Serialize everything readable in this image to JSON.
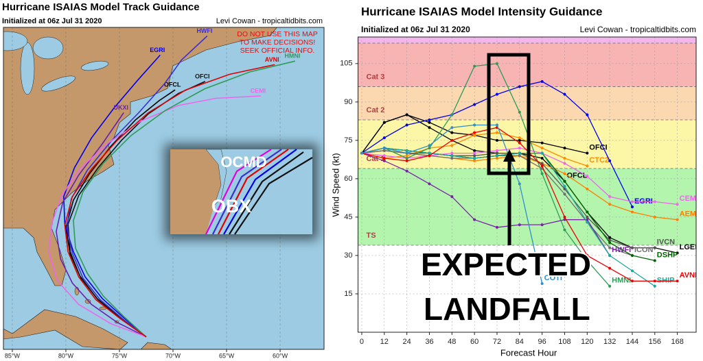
{
  "chart_data": [
    {
      "type": "map",
      "title": "Hurricane ISAIAS Model Track Guidance",
      "subtitle": "Initialized at 06z Jul 31 2020",
      "credit": "Levi Cowan - tropicaltidbits.com",
      "warning": [
        "DO NOT USE THIS MAP",
        "TO MAKE DECISIONS!",
        "SEEK OFFICIAL INFO."
      ],
      "xlim": [
        -85.83,
        -55.9
      ],
      "ylim": [
        19.86,
        46.71
      ],
      "xticks": [
        {
          "value": -85,
          "label": "85°W"
        },
        {
          "value": -80,
          "label": "80°W"
        },
        {
          "value": -75,
          "label": "75°W"
        },
        {
          "value": -70,
          "label": "70°W"
        },
        {
          "value": -65,
          "label": "65°W"
        },
        {
          "value": -60,
          "label": "60°W"
        }
      ],
      "grid": true,
      "series": [
        {
          "name": "OFCL",
          "color": "#000000",
          "x": [
            -72.5,
            -74.8,
            -77,
            -78.6,
            -79.6,
            -80,
            -79.3,
            -77.8,
            -75.8,
            -73.5,
            -71.3,
            -69.8
          ],
          "values": [
            20.9,
            22.4,
            24,
            25.8,
            27.8,
            30,
            32.3,
            34.5,
            36.8,
            39,
            40.6,
            41.5
          ]
        },
        {
          "name": "OFCI",
          "color": "#111111",
          "x": [
            -72.5,
            -74.9,
            -77.1,
            -78.7,
            -79.6,
            -79.8,
            -78.8,
            -77,
            -74.8,
            -72.3,
            -69.5,
            -67
          ],
          "values": [
            20.9,
            22.5,
            24.1,
            26,
            28,
            30.3,
            32.7,
            35,
            37.3,
            39.5,
            41.2,
            42.2
          ]
        },
        {
          "name": "EGRI",
          "color": "#0000ee",
          "x": [
            -72.5,
            -74.6,
            -76.6,
            -78.2,
            -79.3,
            -80.1,
            -80.2,
            -79.2,
            -77.6,
            -75.5,
            -73.3,
            -71.2
          ],
          "values": [
            20.9,
            22.5,
            24.1,
            25.9,
            28,
            30.3,
            32.6,
            35,
            37.5,
            40,
            42.3,
            44.4
          ]
        },
        {
          "name": "HWFI",
          "color": "#3a2fd0",
          "x": [
            -72.5,
            -74.7,
            -76.8,
            -78.4,
            -79.4,
            -79.9,
            -79.5,
            -78,
            -75.8,
            -73.2,
            -70.8,
            -69.2,
            -66.8
          ],
          "values": [
            20.9,
            22.4,
            24,
            25.8,
            27.9,
            30.1,
            32.4,
            34.8,
            37.2,
            39.6,
            42,
            44,
            46
          ]
        },
        {
          "name": "UKXI",
          "color": "#6a1fb0",
          "x": [
            -72.5,
            -75.2,
            -77.6,
            -79.4,
            -80.5,
            -80.9,
            -80.3,
            -78.8,
            -76.6,
            -74.6
          ],
          "values": [
            20.9,
            22.1,
            23.6,
            25.4,
            27.4,
            29.7,
            32.1,
            34.4,
            37,
            39.6
          ]
        },
        {
          "name": "CEMI",
          "color": "#ee66ee",
          "x": [
            -72.5,
            -75.8,
            -78.8,
            -80.8,
            -81.6,
            -81.3,
            -80.4,
            -78.6,
            -76,
            -73,
            -69.5,
            -66,
            -61.8
          ],
          "values": [
            20.9,
            22,
            23.6,
            25.6,
            28,
            30.4,
            32.7,
            35,
            37.1,
            38.9,
            40.2,
            40.8,
            41
          ]
        },
        {
          "name": "HMNI",
          "color": "#2e9b57",
          "x": [
            -72.5,
            -74.6,
            -76.5,
            -78,
            -79.1,
            -79.3,
            -78.4,
            -76.5,
            -73.9,
            -70.7,
            -67,
            -62.8,
            -58.6
          ],
          "values": [
            20.9,
            22.6,
            24.3,
            26.2,
            28.3,
            30.6,
            33,
            35.4,
            37.7,
            39.8,
            41.6,
            43,
            43.9
          ]
        },
        {
          "name": "AVNI",
          "color": "#e00000",
          "x": [
            -72.5,
            -74.9,
            -77.2,
            -78.8,
            -79.8,
            -80.1,
            -79.4,
            -77.6,
            -75.2,
            -72.3,
            -68.8,
            -64.7,
            -60.5
          ],
          "values": [
            20.9,
            22.4,
            24,
            25.9,
            28,
            30.2,
            32.6,
            34.9,
            37.3,
            39.6,
            41.5,
            42.8,
            43.6
          ]
        }
      ],
      "inset": {
        "labels": [
          "OCMD",
          "OBX"
        ]
      }
    },
    {
      "type": "line",
      "title": "Hurricane ISAIAS Model Intensity Guidance",
      "subtitle": "Initialized at 06z Jul 31 2020",
      "credit": "Levi Cowan - tropicaltidbits.com",
      "xlabel": "Forecast Hour",
      "ylabel": "Wind Speed (kt)",
      "x": [
        0,
        12,
        24,
        36,
        48,
        60,
        72,
        84,
        96,
        108,
        120,
        132,
        144,
        156,
        168
      ],
      "xlim": [
        -2,
        178
      ],
      "xticks": [
        0,
        12,
        24,
        36,
        48,
        60,
        72,
        84,
        96,
        108,
        120,
        132,
        144,
        156,
        168
      ],
      "ylim": [
        0,
        115.4
      ],
      "yticks": [
        15,
        30,
        45,
        60,
        75,
        90,
        105
      ],
      "grid": true,
      "bands": [
        {
          "label": "TS",
          "from": 34,
          "to": 64,
          "color": "#b4f5ae"
        },
        {
          "label": "Cat 1",
          "from": 64,
          "to": 83,
          "color": "#fbf7a6"
        },
        {
          "label": "Cat 2",
          "from": 83,
          "to": 96,
          "color": "#fbd8b0"
        },
        {
          "label": "Cat 3",
          "from": 96,
          "to": 113,
          "color": "#f8b3b3"
        },
        {
          "from": 113,
          "to": 115.4,
          "color": "#f3b6ea"
        }
      ],
      "series": [
        {
          "name": "OFCI",
          "color": "#000000",
          "values": [
            70,
            82,
            85,
            82,
            78,
            77,
            75,
            75,
            74,
            72,
            70,
            null,
            null,
            null,
            null
          ]
        },
        {
          "name": "CTC2",
          "color": "#ff8c00",
          "values": [
            70,
            68,
            69,
            72,
            73,
            77,
            78,
            76,
            72,
            68,
            65,
            null,
            null,
            null,
            null
          ]
        },
        {
          "name": "OFCL",
          "color": "#000000",
          "values": [
            70,
            82,
            85,
            80,
            75,
            71,
            70,
            70,
            68,
            59,
            null,
            null,
            null,
            null,
            null
          ]
        },
        {
          "name": "EGRI",
          "color": "#0000ee",
          "values": [
            70,
            76,
            81,
            83,
            85,
            89,
            93,
            96,
            98,
            93,
            85,
            67,
            49,
            null,
            null
          ]
        },
        {
          "name": "CEMI",
          "color": "#ee66ee",
          "values": [
            70,
            69,
            68,
            69,
            70,
            70,
            71,
            72,
            70,
            66,
            61,
            53,
            51,
            51,
            50
          ]
        },
        {
          "name": "AEMI",
          "color": "#ff7f00",
          "values": [
            70,
            71,
            70,
            69,
            68,
            67,
            68,
            69,
            66,
            62,
            56,
            50,
            47,
            45,
            44
          ]
        },
        {
          "name": "LGEM",
          "color": "#000000",
          "values": [
            70,
            72,
            71,
            70,
            69,
            68,
            69,
            70,
            70,
            59,
            47,
            37,
            33,
            33,
            31
          ]
        },
        {
          "name": "IVCN",
          "color": "#555555",
          "values": [
            70,
            71,
            70,
            70,
            69,
            69,
            70,
            70,
            66,
            56,
            45,
            36,
            33,
            33,
            null
          ]
        },
        {
          "name": "ICON",
          "color": "#707070",
          "values": [
            70,
            71,
            70,
            69,
            68,
            68,
            69,
            69,
            64,
            54,
            43,
            33,
            30,
            null,
            null
          ]
        },
        {
          "name": "DSHP",
          "color": "#006400",
          "values": [
            70,
            72,
            71,
            70,
            69,
            68,
            69,
            70,
            70,
            59,
            47,
            35,
            30,
            28,
            null
          ]
        },
        {
          "name": "HWFI",
          "color": "#7b1fa8",
          "values": [
            70,
            67,
            63,
            58,
            53,
            44,
            41,
            42,
            42,
            44,
            44,
            30,
            null,
            null,
            null
          ]
        },
        {
          "name": "SHIP",
          "color": "#20a8a0",
          "values": [
            70,
            72,
            71,
            70,
            69,
            68,
            69,
            70,
            70,
            57,
            43,
            30,
            24,
            18,
            null
          ]
        },
        {
          "name": "HMNI",
          "color": "#2e9b57",
          "values": [
            70,
            72,
            68,
            72,
            85,
            104,
            105,
            86,
            62,
            40,
            28,
            18,
            null,
            null,
            null
          ]
        },
        {
          "name": "AVNI",
          "color": "#ee0000",
          "values": [
            70,
            68,
            67,
            69,
            75,
            78,
            80,
            74,
            65,
            45,
            30,
            25,
            20,
            20,
            20
          ]
        },
        {
          "name": "COTI",
          "color": "#2f8fc8",
          "values": [
            70,
            72,
            70,
            73,
            80,
            81,
            81,
            58,
            19,
            null,
            null,
            null,
            null,
            null,
            null
          ]
        }
      ],
      "annotation": [
        "EXPECTED",
        "LANDFALL"
      ]
    }
  ]
}
